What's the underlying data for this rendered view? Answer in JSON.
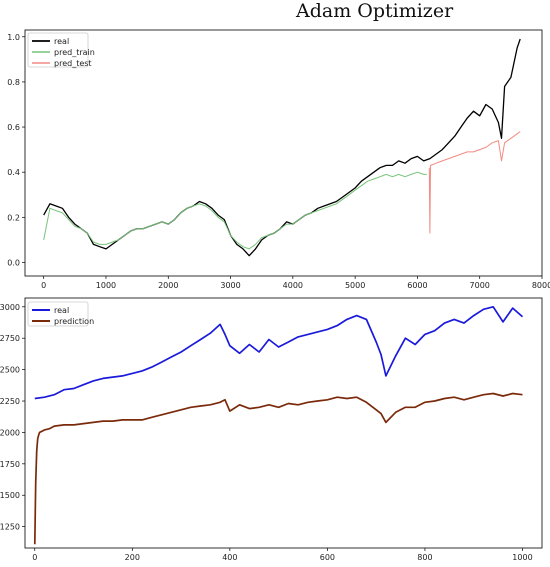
{
  "title": "Adam Optimizer",
  "chart_data": [
    {
      "type": "line",
      "xlim": [
        -300,
        8000
      ],
      "ylim": [
        -0.06,
        1.03
      ],
      "xticks": [
        0,
        1000,
        2000,
        3000,
        4000,
        5000,
        6000,
        7000,
        8000
      ],
      "yticks": [
        0.0,
        0.2,
        0.4,
        0.6,
        0.8,
        1.0
      ],
      "legend_position": "top-left",
      "series": [
        {
          "name": "real",
          "color": "#000000",
          "x": [
            0,
            100,
            200,
            300,
            400,
            500,
            600,
            700,
            800,
            900,
            1000,
            1100,
            1200,
            1300,
            1400,
            1500,
            1600,
            1700,
            1800,
            1900,
            2000,
            2100,
            2200,
            2300,
            2400,
            2500,
            2600,
            2700,
            2800,
            2900,
            3000,
            3100,
            3200,
            3300,
            3400,
            3500,
            3600,
            3700,
            3800,
            3900,
            4000,
            4100,
            4200,
            4300,
            4400,
            4500,
            4600,
            4700,
            4800,
            4900,
            5000,
            5100,
            5200,
            5300,
            5400,
            5500,
            5600,
            5700,
            5800,
            5900,
            6000,
            6100,
            6200,
            6300,
            6400,
            6500,
            6600,
            6700,
            6800,
            6900,
            7000,
            7100,
            7200,
            7300,
            7350,
            7400,
            7500,
            7600,
            7650
          ],
          "y": [
            0.21,
            0.26,
            0.25,
            0.24,
            0.2,
            0.17,
            0.15,
            0.13,
            0.08,
            0.07,
            0.06,
            0.08,
            0.1,
            0.12,
            0.14,
            0.15,
            0.15,
            0.16,
            0.17,
            0.18,
            0.17,
            0.19,
            0.22,
            0.24,
            0.25,
            0.27,
            0.26,
            0.24,
            0.21,
            0.19,
            0.12,
            0.08,
            0.06,
            0.03,
            0.06,
            0.1,
            0.12,
            0.13,
            0.15,
            0.18,
            0.17,
            0.19,
            0.21,
            0.22,
            0.24,
            0.25,
            0.26,
            0.27,
            0.29,
            0.31,
            0.33,
            0.36,
            0.38,
            0.4,
            0.42,
            0.43,
            0.43,
            0.45,
            0.44,
            0.46,
            0.47,
            0.45,
            0.46,
            0.48,
            0.5,
            0.53,
            0.56,
            0.6,
            0.64,
            0.67,
            0.65,
            0.7,
            0.68,
            0.62,
            0.55,
            0.78,
            0.82,
            0.95,
            0.99
          ]
        },
        {
          "name": "pred_train",
          "color": "#77c47a",
          "x": [
            0,
            100,
            200,
            300,
            400,
            500,
            600,
            700,
            800,
            900,
            1000,
            1100,
            1200,
            1300,
            1400,
            1500,
            1600,
            1700,
            1800,
            1900,
            2000,
            2100,
            2200,
            2300,
            2400,
            2500,
            2600,
            2700,
            2800,
            2900,
            3000,
            3100,
            3200,
            3300,
            3400,
            3500,
            3600,
            3700,
            3800,
            3900,
            4000,
            4100,
            4200,
            4300,
            4400,
            4500,
            4600,
            4700,
            4800,
            4900,
            5000,
            5100,
            5200,
            5300,
            5400,
            5500,
            5600,
            5700,
            5800,
            5900,
            6000,
            6100,
            6150
          ],
          "y": [
            0.1,
            0.24,
            0.23,
            0.22,
            0.19,
            0.16,
            0.15,
            0.13,
            0.09,
            0.08,
            0.08,
            0.09,
            0.1,
            0.12,
            0.14,
            0.15,
            0.15,
            0.16,
            0.17,
            0.18,
            0.17,
            0.19,
            0.22,
            0.24,
            0.25,
            0.26,
            0.25,
            0.23,
            0.2,
            0.18,
            0.12,
            0.09,
            0.07,
            0.06,
            0.08,
            0.11,
            0.12,
            0.13,
            0.15,
            0.17,
            0.17,
            0.19,
            0.21,
            0.22,
            0.23,
            0.24,
            0.25,
            0.26,
            0.28,
            0.3,
            0.32,
            0.34,
            0.36,
            0.37,
            0.38,
            0.39,
            0.38,
            0.39,
            0.38,
            0.39,
            0.4,
            0.39,
            0.39
          ]
        },
        {
          "name": "pred_test",
          "color": "#f28b82",
          "x": [
            6190,
            6200,
            6210,
            6300,
            6400,
            6500,
            6600,
            6700,
            6800,
            6900,
            7000,
            7100,
            7200,
            7300,
            7350,
            7400,
            7500,
            7600,
            7650
          ],
          "y": [
            0.42,
            0.13,
            0.43,
            0.44,
            0.45,
            0.46,
            0.47,
            0.48,
            0.49,
            0.49,
            0.5,
            0.51,
            0.53,
            0.54,
            0.45,
            0.53,
            0.55,
            0.57,
            0.58
          ]
        }
      ]
    },
    {
      "type": "line",
      "xlim": [
        -20,
        1040
      ],
      "ylim": [
        1080,
        3070
      ],
      "xticks": [
        0,
        200,
        400,
        600,
        800,
        1000
      ],
      "yticks": [
        1250,
        1500,
        1750,
        2000,
        2250,
        2500,
        2750,
        3000
      ],
      "legend_position": "top-left",
      "series": [
        {
          "name": "real",
          "color": "#1a1adb",
          "x": [
            0,
            20,
            40,
            60,
            80,
            100,
            120,
            140,
            160,
            180,
            200,
            220,
            240,
            260,
            280,
            300,
            320,
            340,
            360,
            380,
            390,
            400,
            420,
            440,
            460,
            480,
            500,
            520,
            540,
            560,
            580,
            600,
            620,
            640,
            660,
            680,
            700,
            710,
            720,
            740,
            760,
            780,
            800,
            820,
            840,
            860,
            880,
            900,
            920,
            940,
            960,
            980,
            1000
          ],
          "y": [
            2270,
            2280,
            2300,
            2340,
            2350,
            2380,
            2410,
            2430,
            2440,
            2450,
            2470,
            2490,
            2520,
            2560,
            2600,
            2640,
            2690,
            2740,
            2790,
            2860,
            2780,
            2690,
            2630,
            2700,
            2640,
            2740,
            2680,
            2720,
            2760,
            2780,
            2800,
            2820,
            2850,
            2900,
            2930,
            2900,
            2720,
            2620,
            2450,
            2610,
            2750,
            2700,
            2780,
            2810,
            2870,
            2900,
            2870,
            2930,
            2980,
            3000,
            2880,
            2990,
            2920
          ]
        },
        {
          "name": "prediction",
          "color": "#7a2a0a",
          "x": [
            0,
            2,
            4,
            6,
            8,
            10,
            15,
            20,
            30,
            40,
            60,
            80,
            100,
            120,
            140,
            160,
            180,
            200,
            220,
            240,
            260,
            280,
            300,
            320,
            340,
            360,
            380,
            390,
            400,
            420,
            440,
            460,
            480,
            500,
            520,
            540,
            560,
            580,
            600,
            620,
            640,
            660,
            680,
            700,
            710,
            720,
            740,
            760,
            780,
            800,
            820,
            840,
            860,
            880,
            900,
            920,
            940,
            960,
            980,
            1000
          ],
          "y": [
            1110,
            1600,
            1850,
            1950,
            1980,
            2000,
            2010,
            2020,
            2030,
            2050,
            2060,
            2060,
            2070,
            2080,
            2090,
            2090,
            2100,
            2100,
            2100,
            2120,
            2140,
            2160,
            2180,
            2200,
            2210,
            2220,
            2240,
            2260,
            2170,
            2220,
            2190,
            2200,
            2220,
            2200,
            2230,
            2220,
            2240,
            2250,
            2260,
            2280,
            2270,
            2280,
            2240,
            2180,
            2150,
            2080,
            2160,
            2200,
            2200,
            2240,
            2250,
            2270,
            2280,
            2260,
            2280,
            2300,
            2310,
            2290,
            2310,
            2300
          ]
        }
      ]
    }
  ]
}
